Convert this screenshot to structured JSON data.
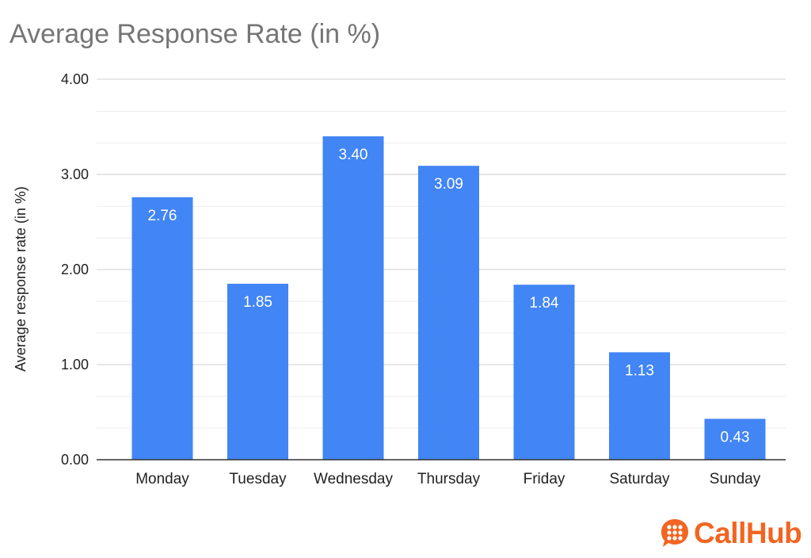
{
  "chart_data": {
    "type": "bar",
    "title": "Average Response Rate (in %)",
    "xlabel": "",
    "ylabel": "Average response rate (in %)",
    "categories": [
      "Monday",
      "Tuesday",
      "Wednesday",
      "Thursday",
      "Friday",
      "Saturday",
      "Sunday"
    ],
    "values": [
      2.76,
      1.85,
      3.4,
      3.09,
      1.84,
      1.13,
      0.43
    ],
    "value_labels": [
      "2.76",
      "1.85",
      "3.40",
      "3.09",
      "1.84",
      "1.13",
      "0.43"
    ],
    "ylim": [
      0,
      4
    ],
    "yticks": [
      0,
      1,
      2,
      3,
      4
    ],
    "ytick_labels": [
      "0.00",
      "1.00",
      "2.00",
      "3.00",
      "4.00"
    ],
    "minor_grid_step": 0.333,
    "grid": true,
    "legend": "none",
    "bar_color": "#4285F4",
    "grid_color": "#D9D9D9",
    "axis_color": "#333333"
  },
  "logo": {
    "text": "CallHub",
    "color": "#F26522",
    "icon": "chat-bubble-icon"
  }
}
